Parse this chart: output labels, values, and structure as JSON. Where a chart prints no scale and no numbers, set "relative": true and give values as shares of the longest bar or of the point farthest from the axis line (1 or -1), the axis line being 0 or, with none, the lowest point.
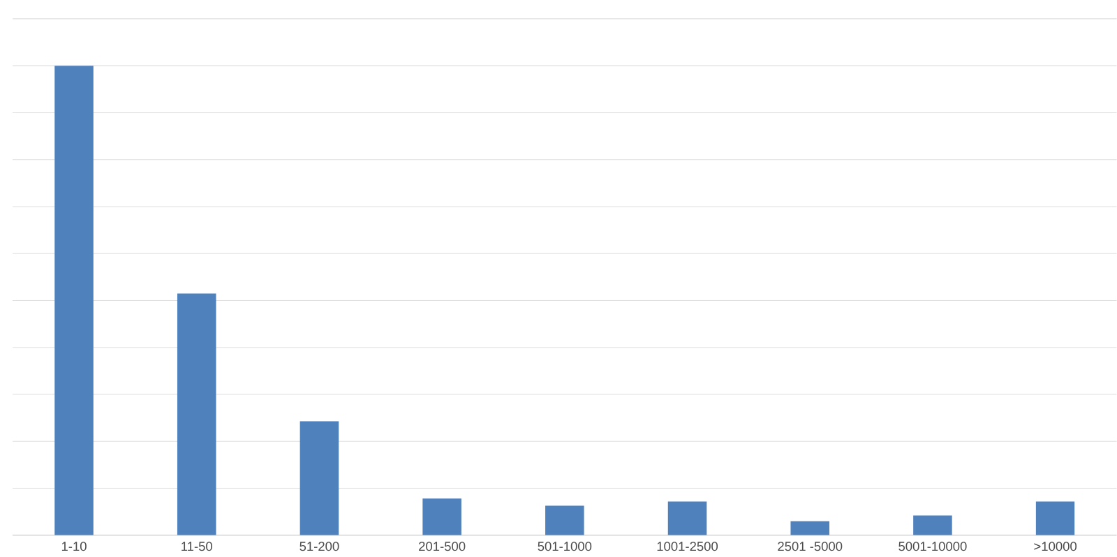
{
  "chart_data": {
    "type": "bar",
    "relative": true,
    "categories": [
      "1-10",
      "11-50",
      "51-200",
      "201-500",
      "501-1000",
      "1001-2500",
      "2501 -5000",
      "5001-10000",
      ">10000"
    ],
    "values": [
      1,
      0.515,
      0.243,
      0.078,
      0.063,
      0.072,
      0.03,
      0.042,
      0.072
    ],
    "color": "#4f81bd",
    "grid": "y"
  }
}
